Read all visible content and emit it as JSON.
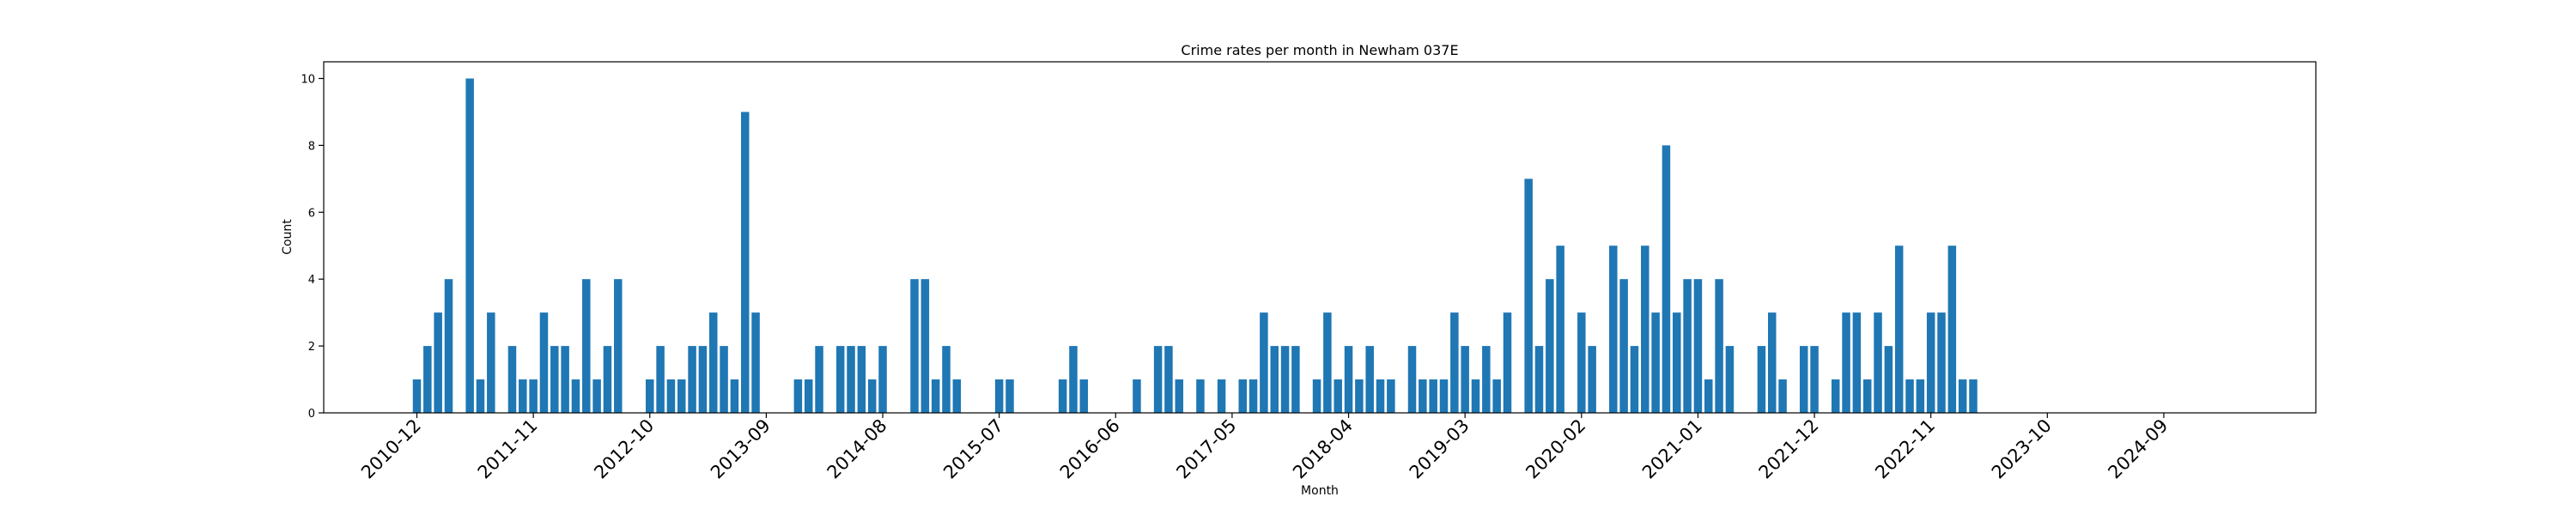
{
  "chart_data": {
    "type": "bar",
    "title": "Crime rates per month in Newham 037E",
    "xlabel": "Month",
    "ylabel": "Count",
    "ylim": [
      0,
      10.5
    ],
    "yticks": [
      "0",
      "2",
      "4",
      "6",
      "8",
      "10"
    ],
    "xticks": [
      "2010-12",
      "2011-11",
      "2012-10",
      "2013-09",
      "2014-08",
      "2015-07",
      "2016-06",
      "2017-05",
      "2018-04",
      "2019-03",
      "2020-02",
      "2021-01",
      "2021-12",
      "2022-11",
      "2023-10",
      "2024-09"
    ],
    "grid": false,
    "legend": false,
    "color": "#1f77b4",
    "bars": [
      {
        "x": "2010-12",
        "y": 1
      },
      {
        "x": "2011-01",
        "y": 2
      },
      {
        "x": "2011-02",
        "y": 3
      },
      {
        "x": "2011-03",
        "y": 4
      },
      {
        "x": "2011-05",
        "y": 10
      },
      {
        "x": "2011-06",
        "y": 1
      },
      {
        "x": "2011-07",
        "y": 3
      },
      {
        "x": "2011-09",
        "y": 2
      },
      {
        "x": "2011-10",
        "y": 1
      },
      {
        "x": "2011-11",
        "y": 1
      },
      {
        "x": "2011-12",
        "y": 3
      },
      {
        "x": "2012-01",
        "y": 2
      },
      {
        "x": "2012-02",
        "y": 2
      },
      {
        "x": "2012-03",
        "y": 1
      },
      {
        "x": "2012-04",
        "y": 4
      },
      {
        "x": "2012-05",
        "y": 1
      },
      {
        "x": "2012-06",
        "y": 2
      },
      {
        "x": "2012-07",
        "y": 4
      },
      {
        "x": "2012-10",
        "y": 1
      },
      {
        "x": "2012-11",
        "y": 2
      },
      {
        "x": "2012-12",
        "y": 1
      },
      {
        "x": "2013-01",
        "y": 1
      },
      {
        "x": "2013-02",
        "y": 2
      },
      {
        "x": "2013-03",
        "y": 2
      },
      {
        "x": "2013-04",
        "y": 3
      },
      {
        "x": "2013-05",
        "y": 2
      },
      {
        "x": "2013-06",
        "y": 1
      },
      {
        "x": "2013-07",
        "y": 9
      },
      {
        "x": "2013-08",
        "y": 3
      },
      {
        "x": "2013-12",
        "y": 1
      },
      {
        "x": "2014-01",
        "y": 1
      },
      {
        "x": "2014-02",
        "y": 2
      },
      {
        "x": "2014-04",
        "y": 2
      },
      {
        "x": "2014-05",
        "y": 2
      },
      {
        "x": "2014-06",
        "y": 2
      },
      {
        "x": "2014-07",
        "y": 1
      },
      {
        "x": "2014-08",
        "y": 2
      },
      {
        "x": "2014-11",
        "y": 4
      },
      {
        "x": "2014-12",
        "y": 4
      },
      {
        "x": "2015-01",
        "y": 1
      },
      {
        "x": "2015-02",
        "y": 2
      },
      {
        "x": "2015-03",
        "y": 1
      },
      {
        "x": "2015-07",
        "y": 1
      },
      {
        "x": "2015-08",
        "y": 1
      },
      {
        "x": "2016-01",
        "y": 1
      },
      {
        "x": "2016-02",
        "y": 2
      },
      {
        "x": "2016-03",
        "y": 1
      },
      {
        "x": "2016-08",
        "y": 1
      },
      {
        "x": "2016-10",
        "y": 2
      },
      {
        "x": "2016-11",
        "y": 2
      },
      {
        "x": "2016-12",
        "y": 1
      },
      {
        "x": "2017-02",
        "y": 1
      },
      {
        "x": "2017-04",
        "y": 1
      },
      {
        "x": "2017-06",
        "y": 1
      },
      {
        "x": "2017-07",
        "y": 1
      },
      {
        "x": "2017-08",
        "y": 3
      },
      {
        "x": "2017-09",
        "y": 2
      },
      {
        "x": "2017-10",
        "y": 2
      },
      {
        "x": "2017-11",
        "y": 2
      },
      {
        "x": "2018-01",
        "y": 1
      },
      {
        "x": "2018-02",
        "y": 3
      },
      {
        "x": "2018-03",
        "y": 1
      },
      {
        "x": "2018-04",
        "y": 2
      },
      {
        "x": "2018-05",
        "y": 1
      },
      {
        "x": "2018-06",
        "y": 2
      },
      {
        "x": "2018-07",
        "y": 1
      },
      {
        "x": "2018-08",
        "y": 1
      },
      {
        "x": "2018-10",
        "y": 2
      },
      {
        "x": "2018-11",
        "y": 1
      },
      {
        "x": "2018-12",
        "y": 1
      },
      {
        "x": "2019-01",
        "y": 1
      },
      {
        "x": "2019-02",
        "y": 3
      },
      {
        "x": "2019-03",
        "y": 2
      },
      {
        "x": "2019-04",
        "y": 1
      },
      {
        "x": "2019-05",
        "y": 2
      },
      {
        "x": "2019-06",
        "y": 1
      },
      {
        "x": "2019-07",
        "y": 3
      },
      {
        "x": "2019-09",
        "y": 7
      },
      {
        "x": "2019-10",
        "y": 2
      },
      {
        "x": "2019-11",
        "y": 4
      },
      {
        "x": "2019-12",
        "y": 5
      },
      {
        "x": "2020-02",
        "y": 3
      },
      {
        "x": "2020-03",
        "y": 2
      },
      {
        "x": "2020-05",
        "y": 5
      },
      {
        "x": "2020-06",
        "y": 4
      },
      {
        "x": "2020-07",
        "y": 2
      },
      {
        "x": "2020-08",
        "y": 5
      },
      {
        "x": "2020-09",
        "y": 3
      },
      {
        "x": "2020-10",
        "y": 8
      },
      {
        "x": "2020-11",
        "y": 3
      },
      {
        "x": "2020-12",
        "y": 4
      },
      {
        "x": "2021-01",
        "y": 4
      },
      {
        "x": "2021-02",
        "y": 1
      },
      {
        "x": "2021-03",
        "y": 4
      },
      {
        "x": "2021-04",
        "y": 2
      },
      {
        "x": "2021-07",
        "y": 2
      },
      {
        "x": "2021-08",
        "y": 3
      },
      {
        "x": "2021-09",
        "y": 1
      },
      {
        "x": "2021-11",
        "y": 2
      },
      {
        "x": "2021-12",
        "y": 2
      },
      {
        "x": "2022-02",
        "y": 1
      },
      {
        "x": "2022-03",
        "y": 3
      },
      {
        "x": "2022-04",
        "y": 3
      },
      {
        "x": "2022-05",
        "y": 1
      },
      {
        "x": "2022-06",
        "y": 3
      },
      {
        "x": "2022-07",
        "y": 2
      },
      {
        "x": "2022-08",
        "y": 5
      },
      {
        "x": "2022-09",
        "y": 1
      },
      {
        "x": "2022-10",
        "y": 1
      },
      {
        "x": "2022-11",
        "y": 3
      },
      {
        "x": "2022-12",
        "y": 3
      },
      {
        "x": "2023-01",
        "y": 5
      },
      {
        "x": "2023-02",
        "y": 1
      },
      {
        "x": "2023-03",
        "y": 1
      }
    ]
  }
}
